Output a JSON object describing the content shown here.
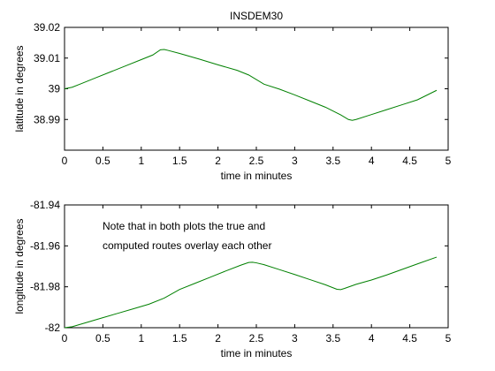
{
  "figure": {
    "title": "INSDEM30",
    "annotation": [
      "Note that in both plots the true and",
      "computed routes overlay each other"
    ]
  },
  "chart_data": [
    {
      "type": "line",
      "title": "INSDEM30",
      "xlabel": "time in minutes",
      "ylabel": "latitude in degrees",
      "xlim": [
        0,
        5
      ],
      "ylim": [
        38.98,
        39.02
      ],
      "xticks": [
        0,
        0.5,
        1,
        1.5,
        2,
        2.5,
        3,
        3.5,
        4,
        4.5,
        5
      ],
      "xtick_labels": [
        "0",
        "0.5",
        "1",
        "1.5",
        "2",
        "2.5",
        "3",
        "3.5",
        "4",
        "4.5",
        "5"
      ],
      "yticks": [
        38.99,
        39.0,
        39.01,
        39.02
      ],
      "ytick_labels": [
        "38.99",
        "39",
        "39.01",
        "39.02"
      ],
      "grid": false,
      "line_color": "#008000",
      "series": [
        {
          "x": [
            0,
            0.1,
            0.2,
            0.4,
            0.6,
            0.8,
            1.0,
            1.15,
            1.25,
            1.3,
            1.35,
            1.5,
            1.75,
            2.0,
            2.25,
            2.4,
            2.6,
            2.8,
            3.0,
            3.2,
            3.4,
            3.6,
            3.7,
            3.75,
            3.8,
            4.0,
            4.2,
            4.4,
            4.6,
            4.85
          ],
          "y": [
            39.0,
            39.0005,
            39.0015,
            39.0035,
            39.0055,
            39.0075,
            39.0095,
            39.011,
            39.0127,
            39.0128,
            39.0125,
            39.0115,
            39.0097,
            39.0078,
            39.006,
            39.0045,
            39.0015,
            38.9999,
            38.998,
            38.996,
            38.994,
            38.9915,
            38.99,
            38.9897,
            38.99,
            38.9916,
            38.9932,
            38.9948,
            38.9964,
            38.9995
          ]
        }
      ]
    },
    {
      "type": "line",
      "title": "",
      "xlabel": "time in minutes",
      "ylabel": "longitude in degrees",
      "xlim": [
        0,
        5
      ],
      "ylim": [
        -82.0,
        -81.94
      ],
      "xticks": [
        0,
        0.5,
        1,
        1.5,
        2,
        2.5,
        3,
        3.5,
        4,
        4.5,
        5
      ],
      "xtick_labels": [
        "0",
        "0.5",
        "1",
        "1.5",
        "2",
        "2.5",
        "3",
        "3.5",
        "4",
        "4.5",
        "5"
      ],
      "yticks": [
        -82.0,
        -81.98,
        -81.96,
        -81.94
      ],
      "ytick_labels": [
        "-82",
        "-81.98",
        "-81.96",
        "-81.94"
      ],
      "grid": false,
      "line_color": "#008000",
      "series": [
        {
          "x": [
            0,
            0.1,
            0.3,
            0.5,
            0.7,
            0.9,
            1.1,
            1.3,
            1.5,
            1.7,
            1.9,
            2.1,
            2.3,
            2.4,
            2.45,
            2.5,
            2.6,
            2.8,
            3.0,
            3.2,
            3.4,
            3.55,
            3.6,
            3.65,
            3.8,
            4.0,
            4.2,
            4.4,
            4.6,
            4.85
          ],
          "y": [
            -82.0,
            -81.9995,
            -81.9973,
            -81.9951,
            -81.9929,
            -81.9907,
            -81.9885,
            -81.9855,
            -81.9813,
            -81.9783,
            -81.9753,
            -81.9723,
            -81.9694,
            -81.9681,
            -81.968,
            -81.9683,
            -81.9692,
            -81.9716,
            -81.974,
            -81.9765,
            -81.979,
            -81.9812,
            -81.9814,
            -81.9808,
            -81.9788,
            -81.9767,
            -81.9742,
            -81.9715,
            -81.9688,
            -81.9655
          ]
        }
      ]
    }
  ]
}
